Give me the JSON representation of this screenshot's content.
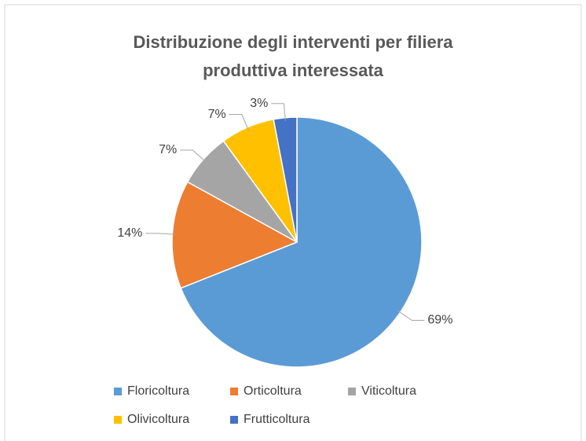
{
  "chart_data": {
    "type": "pie",
    "title": "Distribuzione degli interventi per filiera produttiva interessata",
    "series": [
      {
        "name": "Floricoltura",
        "color": "#5b9bd5"
      },
      {
        "name": "Orticoltura",
        "color": "#ed7d31"
      },
      {
        "name": "Viticoltura",
        "color": "#a5a5a5"
      },
      {
        "name": "Olivicoltura",
        "color": "#ffc000"
      },
      {
        "name": "Frutticoltura",
        "color": "#4472c4"
      }
    ],
    "values": [
      69,
      14,
      7,
      7,
      3
    ],
    "value_labels": [
      "69%",
      "14%",
      "7%",
      "7%",
      "3%"
    ],
    "legend": "bottom"
  }
}
